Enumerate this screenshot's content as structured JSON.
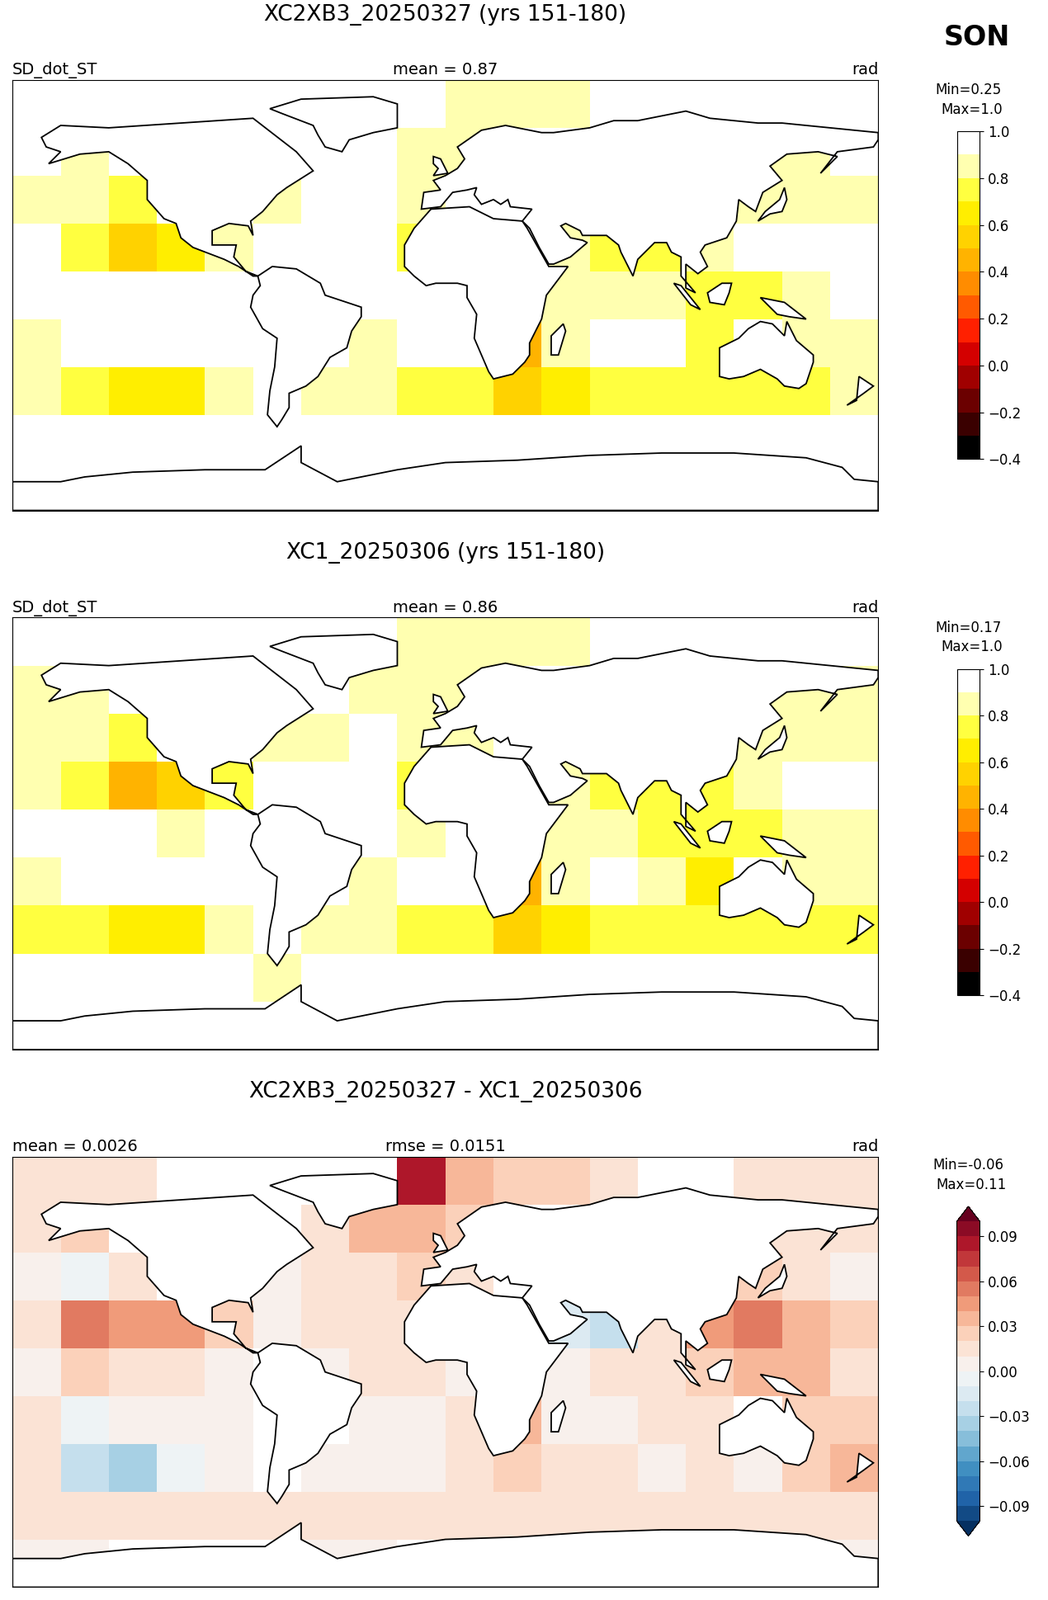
{
  "figure_label": "SON",
  "chart_data": [
    {
      "type": "heatmap",
      "title": "XC2XB3_20250327 (yrs 151-180)",
      "header_left": "SD_dot_ST",
      "header_center": "mean = 0.87",
      "header_right": "rad",
      "xlim": [
        -180,
        180
      ],
      "ylim": [
        -90,
        90
      ],
      "tick_labels": false,
      "x": [
        -170,
        -150,
        -130,
        -110,
        -90,
        -70,
        -50,
        -30,
        -10,
        10,
        30,
        50,
        70,
        90,
        110,
        130,
        150,
        170
      ],
      "y": [
        80,
        60,
        40,
        20,
        0,
        -20,
        -40,
        -60,
        -80
      ],
      "cells": [
        [
          1.0,
          1.0,
          1.0,
          null,
          null,
          null,
          null,
          null,
          0.9,
          0.88,
          0.87,
          0.88,
          1.0,
          null,
          null,
          1.0,
          1.0,
          1.0
        ],
        [
          0.9,
          0.88,
          null,
          null,
          0.95,
          null,
          0.95,
          0.92,
          0.88,
          0.88,
          null,
          null,
          null,
          null,
          null,
          0.87,
          0.87,
          0.9
        ],
        [
          0.85,
          0.8,
          0.72,
          null,
          null,
          0.85,
          0.9,
          0.93,
          0.88,
          0.9,
          null,
          null,
          null,
          null,
          null,
          0.85,
          0.85,
          0.85
        ],
        [
          0.9,
          0.75,
          0.5,
          0.62,
          0.8,
          0.95,
          0.95,
          0.92,
          0.72,
          null,
          null,
          0.82,
          0.75,
          0.72,
          0.8,
          0.92,
          0.95,
          0.95
        ],
        [
          0.95,
          0.97,
          0.95,
          0.9,
          0.9,
          null,
          0.93,
          0.93,
          0.9,
          0.92,
          null,
          0.88,
          0.85,
          0.8,
          0.72,
          0.78,
          0.85,
          0.9
        ],
        [
          0.88,
          0.9,
          0.95,
          0.95,
          0.95,
          null,
          null,
          0.88,
          0.95,
          0.95,
          0.45,
          0.85,
          0.95,
          0.9,
          0.7,
          null,
          0.85,
          0.85
        ],
        [
          0.8,
          0.7,
          0.62,
          0.68,
          0.8,
          null,
          0.85,
          0.8,
          0.78,
          0.75,
          0.58,
          0.65,
          0.72,
          0.78,
          0.75,
          0.78,
          0.72,
          0.82
        ],
        [
          0.97,
          0.97,
          0.97,
          0.97,
          0.95,
          0.9,
          0.95,
          0.97,
          0.97,
          0.97,
          0.97,
          0.97,
          0.97,
          0.97,
          0.97,
          0.97,
          0.97,
          0.97
        ],
        [
          1.0,
          1.0,
          null,
          null,
          null,
          null,
          1.0,
          1.0,
          null,
          null,
          null,
          null,
          null,
          null,
          null,
          null,
          null,
          1.0
        ]
      ],
      "colorbar": {
        "range": [
          -0.4,
          1.0
        ],
        "levels": [
          -0.4,
          -0.3,
          -0.2,
          -0.1,
          0.0,
          0.1,
          0.2,
          0.3,
          0.4,
          0.5,
          0.6,
          0.7,
          0.8,
          0.9,
          1.0
        ],
        "ticks": [
          {
            "value": -0.4,
            "label": "−0.4"
          },
          {
            "value": -0.2,
            "label": "−0.2"
          },
          0.0,
          0.2,
          0.4,
          0.6,
          0.8,
          1.0
        ],
        "min_label": "Min=0.25",
        "max_label": "Max=1.0"
      }
    },
    {
      "type": "heatmap",
      "title": "XC1_20250306 (yrs 151-180)",
      "header_left": "SD_dot_ST",
      "header_center": "mean = 0.86",
      "header_right": "rad",
      "xlim": [
        -180,
        180
      ],
      "ylim": [
        -90,
        90
      ],
      "tick_labels": false,
      "x": [
        -170,
        -150,
        -130,
        -110,
        -90,
        -70,
        -50,
        -30,
        -10,
        10,
        30,
        50,
        70,
        90,
        110,
        130,
        150,
        170
      ],
      "y": [
        80,
        60,
        40,
        20,
        0,
        -20,
        -40,
        -60,
        -80
      ],
      "cells": [
        [
          0.99,
          0.99,
          0.99,
          null,
          null,
          null,
          null,
          null,
          0.82,
          0.85,
          0.85,
          0.86,
          0.99,
          null,
          null,
          0.99,
          0.99,
          0.99
        ],
        [
          0.89,
          0.86,
          null,
          null,
          0.95,
          null,
          0.94,
          0.89,
          0.85,
          0.86,
          null,
          null,
          null,
          null,
          null,
          0.86,
          0.86,
          0.89
        ],
        [
          0.85,
          0.81,
          0.71,
          null,
          null,
          0.85,
          0.89,
          0.92,
          0.86,
          0.89,
          null,
          null,
          null,
          null,
          null,
          0.83,
          0.84,
          0.85
        ],
        [
          0.89,
          0.7,
          0.46,
          0.58,
          0.78,
          0.95,
          0.94,
          0.91,
          0.71,
          null,
          null,
          0.84,
          0.78,
          0.71,
          0.76,
          0.87,
          0.92,
          0.93
        ],
        [
          0.95,
          0.95,
          0.94,
          0.89,
          0.9,
          null,
          0.93,
          0.92,
          0.89,
          0.92,
          null,
          0.88,
          0.84,
          0.79,
          0.7,
          0.75,
          0.82,
          0.89
        ],
        [
          0.87,
          0.91,
          0.95,
          0.95,
          0.95,
          null,
          null,
          0.88,
          0.95,
          0.94,
          0.42,
          0.85,
          0.95,
          0.89,
          0.69,
          null,
          0.83,
          0.83
        ],
        [
          0.79,
          0.73,
          0.66,
          0.69,
          0.8,
          null,
          0.85,
          0.8,
          0.78,
          0.74,
          0.56,
          0.64,
          0.71,
          0.78,
          0.74,
          0.78,
          0.7,
          0.79
        ],
        [
          0.96,
          0.96,
          0.96,
          0.96,
          0.94,
          0.89,
          0.94,
          0.96,
          0.96,
          0.96,
          0.96,
          0.96,
          0.96,
          0.96,
          0.96,
          0.96,
          0.96,
          0.96
        ],
        [
          1.0,
          1.0,
          null,
          null,
          null,
          null,
          1.0,
          1.0,
          null,
          null,
          null,
          null,
          null,
          null,
          null,
          null,
          null,
          1.0
        ]
      ],
      "colorbar": {
        "range": [
          -0.4,
          1.0
        ],
        "levels": [
          -0.4,
          -0.3,
          -0.2,
          -0.1,
          0.0,
          0.1,
          0.2,
          0.3,
          0.4,
          0.5,
          0.6,
          0.7,
          0.8,
          0.9,
          1.0
        ],
        "ticks": [
          {
            "value": -0.4,
            "label": "−0.4"
          },
          {
            "value": -0.2,
            "label": "−0.2"
          },
          0.0,
          0.2,
          0.4,
          0.6,
          0.8,
          1.0
        ],
        "min_label": "Min=0.17",
        "max_label": "Max=1.0"
      }
    },
    {
      "type": "heatmap",
      "title": "XC2XB3_20250327 - XC1_20250306",
      "header_left": "mean = 0.0026",
      "header_center": "rmse = 0.0151",
      "header_right": "rad",
      "xlim": [
        -180,
        180
      ],
      "ylim": [
        -90,
        90
      ],
      "tick_labels": false,
      "x": [
        -170,
        -150,
        -130,
        -110,
        -90,
        -70,
        -50,
        -30,
        -10,
        10,
        30,
        50,
        70,
        90,
        110,
        130,
        150,
        170
      ],
      "y": [
        80,
        60,
        40,
        20,
        0,
        -20,
        -40,
        -60,
        -80
      ],
      "cells": [
        [
          0.01,
          0.01,
          0.01,
          null,
          null,
          null,
          null,
          null,
          0.08,
          0.03,
          0.02,
          0.02,
          0.01,
          null,
          null,
          0.01,
          0.01,
          0.01
        ],
        [
          0.01,
          0.02,
          null,
          null,
          0.0,
          null,
          0.01,
          0.03,
          0.03,
          0.02,
          null,
          null,
          null,
          null,
          null,
          0.01,
          0.01,
          0.01
        ],
        [
          0.0,
          -0.01,
          0.01,
          null,
          null,
          0.0,
          0.01,
          0.01,
          0.02,
          0.01,
          null,
          null,
          null,
          null,
          null,
          0.02,
          0.01,
          0.0
        ],
        [
          0.01,
          0.05,
          0.04,
          0.04,
          0.02,
          0.0,
          0.01,
          0.01,
          0.01,
          null,
          null,
          -0.02,
          -0.03,
          0.01,
          0.04,
          0.05,
          0.03,
          0.02
        ],
        [
          0.0,
          0.02,
          0.01,
          0.01,
          0.0,
          null,
          0.0,
          0.01,
          0.01,
          0.0,
          null,
          0.0,
          0.01,
          0.01,
          0.02,
          0.03,
          0.03,
          0.01
        ],
        [
          0.01,
          -0.01,
          0.0,
          0.0,
          0.0,
          null,
          null,
          0.0,
          0.0,
          0.01,
          0.03,
          0.0,
          0.0,
          0.01,
          0.01,
          null,
          0.02,
          0.02
        ],
        [
          0.01,
          -0.03,
          -0.04,
          -0.01,
          0.0,
          null,
          0.0,
          0.0,
          0.0,
          0.01,
          0.02,
          0.01,
          0.01,
          0.0,
          0.01,
          0.0,
          0.02,
          0.03
        ],
        [
          0.01,
          0.01,
          0.01,
          0.01,
          0.01,
          0.01,
          0.01,
          0.01,
          0.01,
          0.01,
          0.01,
          0.01,
          0.01,
          0.01,
          0.01,
          0.01,
          0.01,
          0.01
        ],
        [
          0.0,
          0.0,
          null,
          null,
          null,
          null,
          0.0,
          0.0,
          null,
          null,
          null,
          null,
          null,
          null,
          null,
          null,
          null,
          0.0
        ]
      ],
      "colorbar": {
        "range": [
          -0.1,
          0.1
        ],
        "levels": [
          -0.1,
          -0.09,
          -0.08,
          -0.07,
          -0.06,
          -0.05,
          -0.04,
          -0.03,
          -0.02,
          -0.01,
          0.0,
          0.01,
          0.02,
          0.03,
          0.04,
          0.05,
          0.06,
          0.07,
          0.08,
          0.09,
          0.1
        ],
        "ticks": [
          {
            "value": -0.09,
            "label": "−0.09"
          },
          {
            "value": -0.06,
            "label": "−0.06"
          },
          {
            "value": -0.03,
            "label": "−0.03"
          },
          {
            "value": 0.0,
            "label": "0.00"
          },
          0.03,
          0.06,
          0.09
        ],
        "min_label": "Min=-0.06",
        "max_label": "Max=0.11"
      }
    }
  ]
}
